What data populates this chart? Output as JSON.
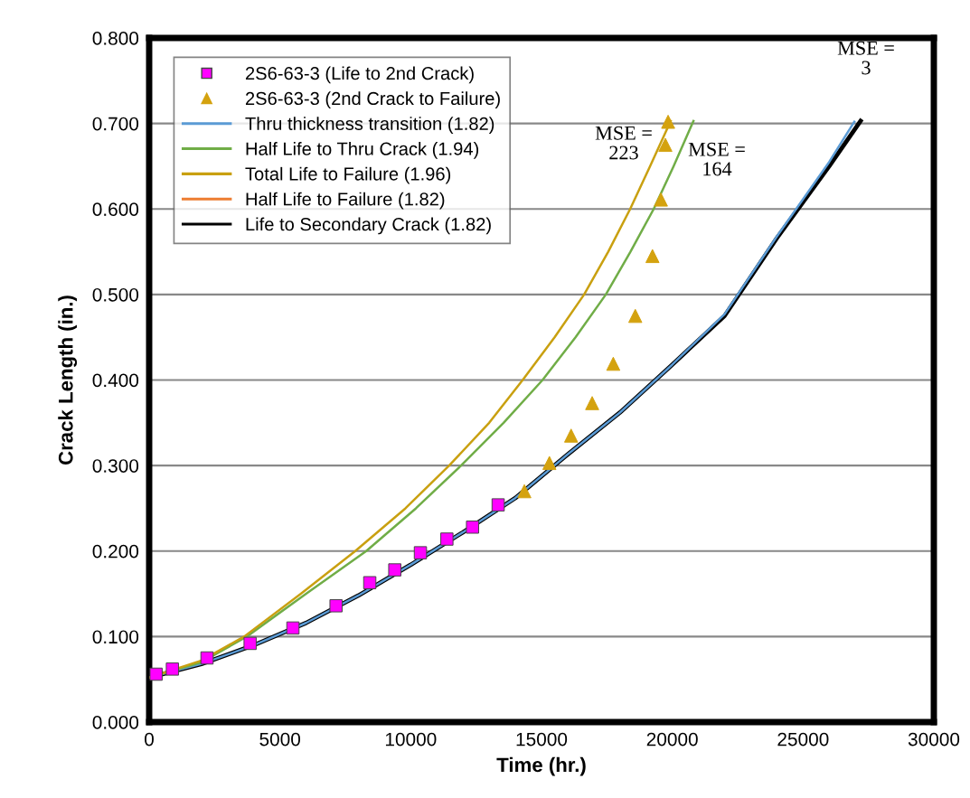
{
  "chart_data": {
    "type": "line",
    "xlabel": "Time (hr.)",
    "ylabel": "Crack Length (in.)",
    "xlim": [
      0,
      30000
    ],
    "xticks": [
      0,
      5000,
      10000,
      15000,
      20000,
      25000,
      30000
    ],
    "ylim": [
      0,
      0.8
    ],
    "yticks": [
      {
        "value": 0,
        "label": "0.000"
      },
      {
        "value": 0.1,
        "label": "0.100"
      },
      {
        "value": 0.2,
        "label": "0.200"
      },
      {
        "value": 0.3,
        "label": "0.300"
      },
      {
        "value": 0.4,
        "label": "0.400"
      },
      {
        "value": 0.5,
        "label": "0.500"
      },
      {
        "value": 0.6,
        "label": "0.600"
      },
      {
        "value": 0.7,
        "label": "0.700"
      },
      {
        "value": 0.8,
        "label": "0.800"
      }
    ],
    "grid": "y",
    "legend": "top left",
    "series": [
      {
        "name": "2S6-63-3 (Life to 2nd Crack)",
        "type": "scatter",
        "marker": "square",
        "color": "#ff00ff",
        "x": [
          265,
          888,
          2212,
          3860,
          5496,
          7145,
          8434,
          9391,
          10370,
          11383,
          12364,
          13343
        ],
        "values": [
          0.056,
          0.062,
          0.075,
          0.092,
          0.11,
          0.136,
          0.163,
          0.178,
          0.198,
          0.214,
          0.228,
          0.254
        ]
      },
      {
        "name": "2S6-63-3 (2nd Crack to Failure)",
        "type": "scatter",
        "marker": "triangle",
        "color": "#d4a20f",
        "x": [
          14345,
          15302,
          16132,
          16937,
          17744,
          18586,
          19243,
          19565,
          19737,
          19841
        ],
        "values": [
          0.27,
          0.303,
          0.335,
          0.373,
          0.419,
          0.475,
          0.545,
          0.611,
          0.675,
          0.702
        ]
      },
      {
        "name": "Thru thickness transition (1.82)",
        "color": "#5b9bd5",
        "x": [
          0,
          2000,
          4000,
          6000,
          8000,
          10000,
          12000,
          14000,
          16000,
          18000,
          20000,
          22000,
          24000,
          26000,
          26960
        ],
        "values": [
          0.052,
          0.068,
          0.09,
          0.116,
          0.148,
          0.184,
          0.222,
          0.262,
          0.313,
          0.362,
          0.418,
          0.477,
          0.568,
          0.655,
          0.702
        ]
      },
      {
        "name": "Half Life to Thru Crack (1.94)",
        "color": "#70ad47",
        "x": [
          0,
          2000,
          3730,
          6000,
          8300,
          10200,
          11925,
          13550,
          15040,
          16300,
          17460,
          18400,
          19290,
          20050,
          20810
        ],
        "values": [
          0.052,
          0.07,
          0.1,
          0.15,
          0.2,
          0.25,
          0.3,
          0.35,
          0.4,
          0.45,
          0.5,
          0.55,
          0.6,
          0.65,
          0.703
        ]
      },
      {
        "name": "Total Life to Failure (1.96)",
        "color": "#c9a010",
        "x": [
          0,
          2000,
          3630,
          5800,
          7880,
          9800,
          11470,
          13000,
          14280,
          15500,
          16630,
          17550,
          18390,
          19150,
          19940
        ],
        "values": [
          0.052,
          0.072,
          0.1,
          0.15,
          0.2,
          0.25,
          0.3,
          0.35,
          0.4,
          0.45,
          0.5,
          0.55,
          0.6,
          0.65,
          0.703
        ]
      },
      {
        "name": "Half Life to Failure (1.82)",
        "color": "#ed7d31"
      },
      {
        "name": "Life to Secondary Crack (1.82)",
        "color": "#000000",
        "x": [
          0,
          2000,
          4000,
          6000,
          8000,
          10000,
          12000,
          14000,
          16000,
          18000,
          20000,
          22000,
          24000,
          26000,
          27200
        ],
        "values": [
          0.052,
          0.068,
          0.09,
          0.116,
          0.148,
          0.184,
          0.222,
          0.262,
          0.313,
          0.362,
          0.418,
          0.475,
          0.566,
          0.65,
          0.703
        ]
      }
    ],
    "annotations": [
      "MSE =\n223",
      "MSE =\n164",
      "MSE =\n3"
    ]
  }
}
